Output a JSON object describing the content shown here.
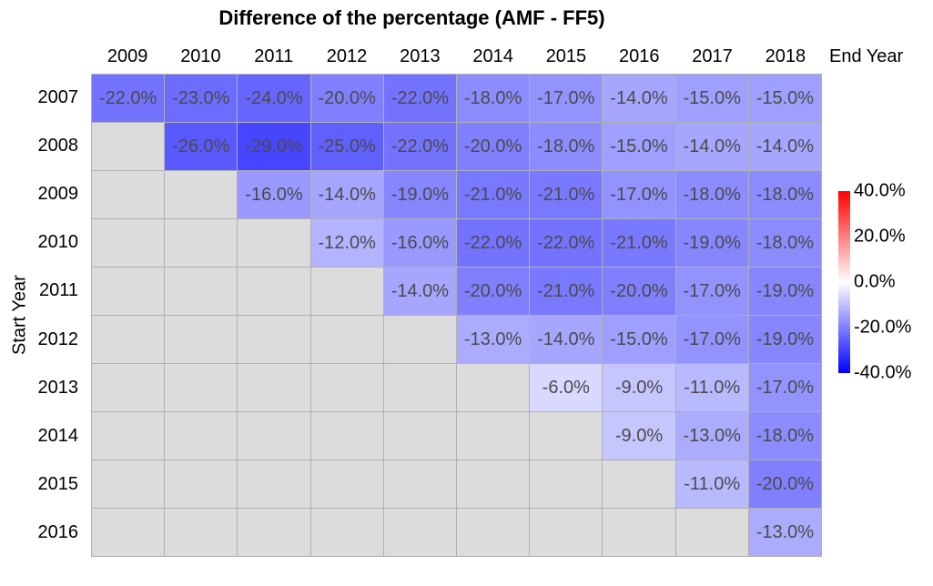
{
  "title": "Difference of the percentage (AMF - FF5)",
  "chart_data": {
    "type": "heatmap",
    "title": "Difference of the percentage (AMF - FF5)",
    "x_axis_label": "End Year",
    "y_axis_label": "Start Year",
    "columns": [
      "2009",
      "2010",
      "2011",
      "2012",
      "2013",
      "2014",
      "2015",
      "2016",
      "2017",
      "2018"
    ],
    "rows": [
      "2007",
      "2008",
      "2009",
      "2010",
      "2011",
      "2012",
      "2013",
      "2014",
      "2015",
      "2016"
    ],
    "values": [
      [
        -22,
        -23,
        -24,
        -20,
        -22,
        -18,
        -17,
        -14,
        -15,
        -15
      ],
      [
        null,
        -26,
        -29,
        -25,
        -22,
        -20,
        -18,
        -15,
        -14,
        -14
      ],
      [
        null,
        null,
        -16,
        -14,
        -19,
        -21,
        -21,
        -17,
        -18,
        -18
      ],
      [
        null,
        null,
        null,
        -12,
        -16,
        -22,
        -22,
        -21,
        -19,
        -18
      ],
      [
        null,
        null,
        null,
        null,
        -14,
        -20,
        -21,
        -20,
        -17,
        -19
      ],
      [
        null,
        null,
        null,
        null,
        null,
        -13,
        -14,
        -15,
        -17,
        -19
      ],
      [
        null,
        null,
        null,
        null,
        null,
        null,
        -6,
        -9,
        -11,
        -17
      ],
      [
        null,
        null,
        null,
        null,
        null,
        null,
        null,
        -9,
        -13,
        -18
      ],
      [
        null,
        null,
        null,
        null,
        null,
        null,
        null,
        null,
        -11,
        -20
      ],
      [
        null,
        null,
        null,
        null,
        null,
        null,
        null,
        null,
        null,
        -13
      ]
    ],
    "value_suffix": "%",
    "value_decimals": 1,
    "colormap": "blue-white-red",
    "color_domain": [
      -40,
      40
    ],
    "colorbar": {
      "tick_labels": [
        "40.0%",
        "20.0%",
        "0.0%",
        "-20.0%",
        "-40.0%"
      ],
      "tick_values": [
        40,
        20,
        0,
        -20,
        -40
      ],
      "top_color": "#ff0000",
      "mid_color": "#ffffff",
      "bottom_color": "#0000ff"
    },
    "grid": true,
    "legend_position": "right"
  },
  "colors": {
    "empty_cell": "#dcdcdc",
    "grid_line": "#b0b0b4",
    "cell_text": "#4a4a4a",
    "axis_text": "#000000",
    "background": "#ffffff"
  }
}
